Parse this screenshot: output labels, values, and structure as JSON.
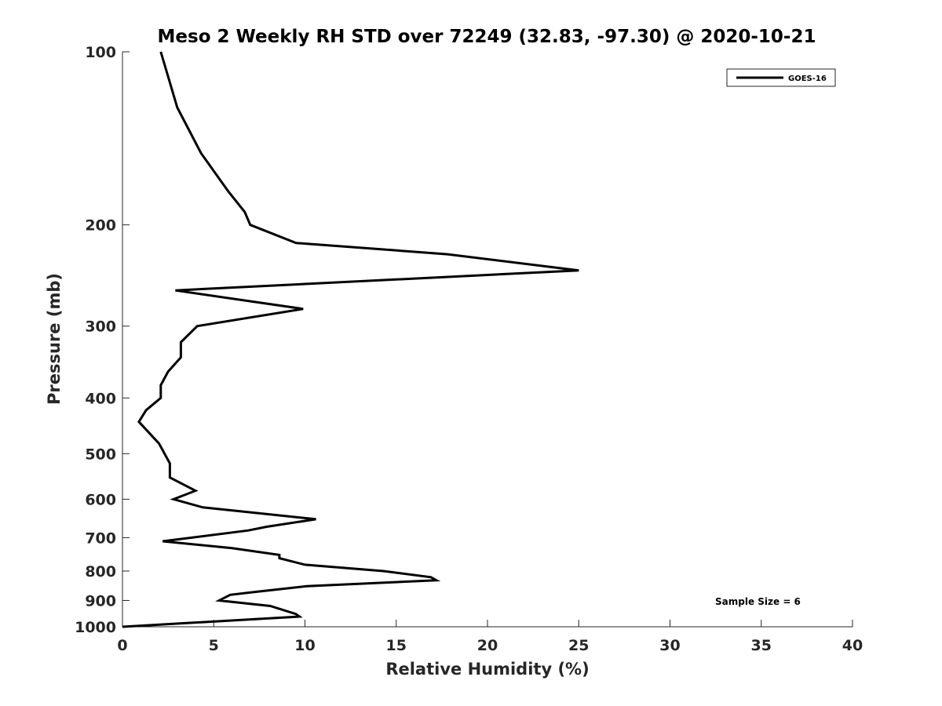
{
  "chart_data": {
    "type": "line",
    "title": "Meso 2 Weekly RH STD over 72249 (32.83, -97.30) @ 2020-10-21",
    "xlabel": "Relative Humidity (%)",
    "ylabel": "Pressure (mb)",
    "xlim": [
      0,
      40
    ],
    "ylim": [
      100,
      1000
    ],
    "yscale": "log",
    "y_reversed": true,
    "x_ticks": [
      0,
      5,
      10,
      15,
      20,
      25,
      30,
      35,
      40
    ],
    "y_ticks": [
      100,
      200,
      300,
      400,
      500,
      600,
      700,
      800,
      900,
      1000
    ],
    "grid": false,
    "legend_position": "top-right",
    "line_color": "#000000",
    "series": [
      {
        "name": "GOES-16",
        "x": [
          2.1,
          3.0,
          4.3,
          5.8,
          6.7,
          7.0,
          9.5,
          17.8,
          25.0,
          2.9,
          9.9,
          4.1,
          3.2,
          3.2,
          2.5,
          2.1,
          2.1,
          1.3,
          0.9,
          2.0,
          2.6,
          2.6,
          4.0,
          2.8,
          4.4,
          10.6,
          7.9,
          6.9,
          2.2,
          6.0,
          8.6,
          8.6,
          10.0,
          14.3,
          16.9,
          17.2,
          10.1,
          7.2,
          5.9,
          5.3,
          8.1,
          9.5,
          9.7,
          0.0
        ],
        "y": [
          100,
          125,
          150,
          175,
          190,
          200,
          215,
          225,
          240,
          260,
          280,
          300,
          320,
          340,
          360,
          380,
          400,
          420,
          440,
          480,
          520,
          550,
          580,
          600,
          620,
          650,
          670,
          680,
          710,
          730,
          750,
          760,
          780,
          800,
          820,
          830,
          850,
          870,
          880,
          900,
          920,
          950,
          960,
          1000
        ]
      }
    ],
    "annotations": [
      "Sample Size = 6"
    ]
  }
}
